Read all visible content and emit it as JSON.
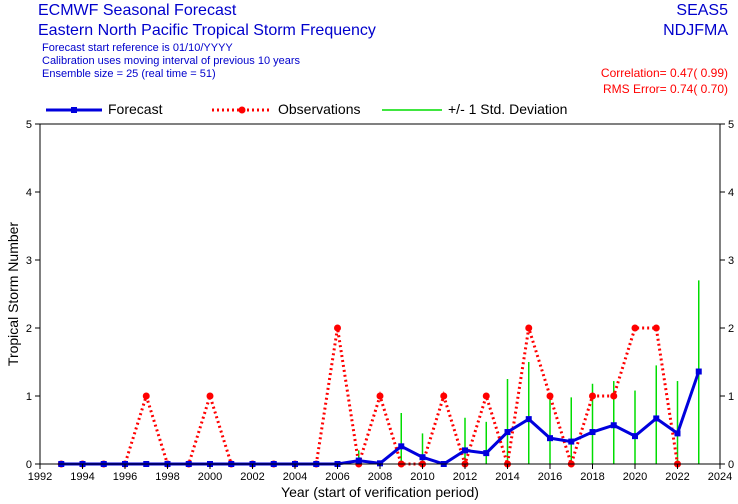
{
  "header": {
    "title": "ECMWF Seasonal Forecast",
    "subtitle": "Eastern North Pacific Tropical Storm Frequency",
    "line1": "Forecast start reference is 01/10/YYYY",
    "line2": "Calibration uses moving interval of previous 10 years",
    "line3": "Ensemble size = 25   (real time = 51)",
    "system": "SEAS5",
    "season": "NDJFMA",
    "correlation": "Correlation= 0.47( 0.99)",
    "rms": "RMS Error= 0.74( 0.70)"
  },
  "legend": {
    "forecast": "Forecast",
    "observations": "Observations",
    "stddev": "+/- 1 Std. Deviation"
  },
  "colors": {
    "forecast": "#0000dd",
    "observations": "#ff0000",
    "stddev": "#00dd00"
  },
  "chart_data": {
    "type": "line",
    "xlabel": "Year (start of verification period)",
    "ylabel": "Tropical Storm Number",
    "xlim": [
      1992,
      2024
    ],
    "ylim": [
      0,
      5
    ],
    "xticks": [
      1992,
      1994,
      1996,
      1998,
      2000,
      2002,
      2004,
      2006,
      2008,
      2010,
      2012,
      2014,
      2016,
      2018,
      2020,
      2022,
      2024
    ],
    "yticks": [
      0,
      1,
      2,
      3,
      4,
      5
    ],
    "grid": false,
    "legend_position": "top",
    "series": [
      {
        "name": "Forecast",
        "x": [
          1993,
          1994,
          1995,
          1996,
          1997,
          1998,
          1999,
          2000,
          2001,
          2002,
          2003,
          2004,
          2005,
          2006,
          2007,
          2008,
          2009,
          2010,
          2011,
          2012,
          2013,
          2014,
          2015,
          2016,
          2017,
          2018,
          2019,
          2020,
          2021,
          2022,
          2023
        ],
        "y": [
          0,
          0,
          0,
          0,
          0,
          0,
          0,
          0,
          0,
          0,
          0,
          0,
          0,
          0,
          0.05,
          0.01,
          0.26,
          0.1,
          0.0,
          0.2,
          0.16,
          0.47,
          0.66,
          0.38,
          0.33,
          0.47,
          0.57,
          0.41,
          0.67,
          0.45,
          1.36
        ]
      },
      {
        "name": "Observations",
        "x": [
          1993,
          1994,
          1995,
          1996,
          1997,
          1998,
          1999,
          2000,
          2001,
          2002,
          2003,
          2004,
          2005,
          2006,
          2007,
          2008,
          2009,
          2010,
          2011,
          2012,
          2013,
          2014,
          2015,
          2016,
          2017,
          2018,
          2019,
          2020,
          2021,
          2022
        ],
        "y": [
          0,
          0,
          0,
          0,
          1,
          0,
          0,
          1,
          0,
          0,
          0,
          0,
          0,
          2,
          0,
          1,
          0,
          0,
          1,
          0,
          1,
          0,
          2,
          1,
          0,
          1,
          1,
          2,
          2,
          0
        ]
      },
      {
        "name": "+/- 1 Std. Deviation",
        "x": [
          2007,
          2009,
          2010,
          2012,
          2013,
          2014,
          2015,
          2016,
          2017,
          2018,
          2019,
          2020,
          2021,
          2022,
          2023
        ],
        "low": [
          0,
          0,
          0,
          0,
          0,
          0,
          0,
          0,
          0,
          0,
          0,
          0,
          0,
          0,
          0
        ],
        "high": [
          0.2,
          0.75,
          0.45,
          0.68,
          0.62,
          1.25,
          1.5,
          1.0,
          0.98,
          1.18,
          1.22,
          1.08,
          1.45,
          1.22,
          2.7
        ]
      }
    ]
  }
}
